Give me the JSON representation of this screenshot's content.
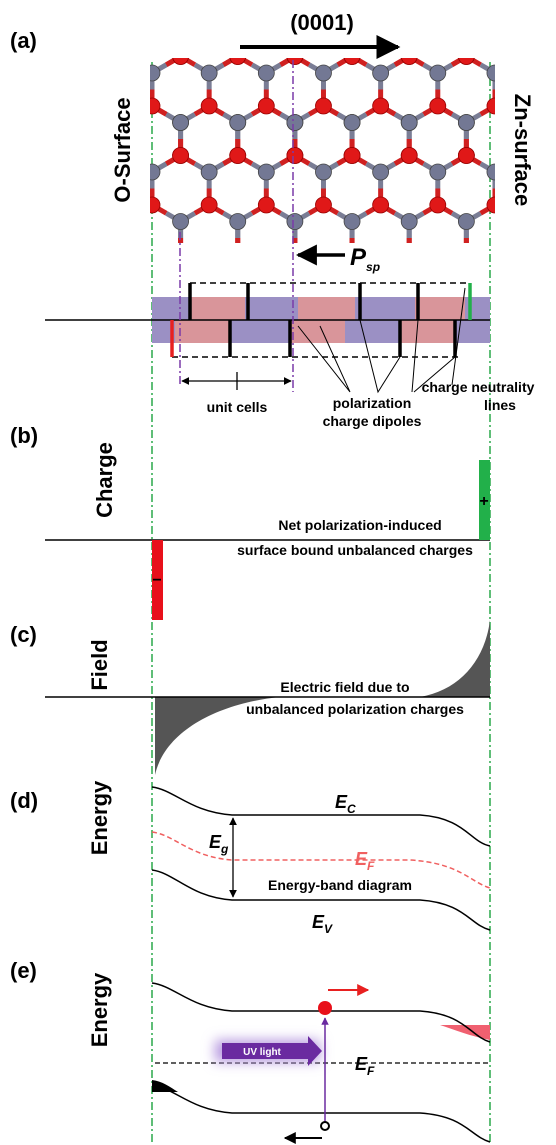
{
  "a": {
    "label": "(a)",
    "direction": "(0001)",
    "left_surface": "O-Surface",
    "right_surface": "Zn-surface",
    "polarization": {
      "main": "P",
      "sub": "sp"
    },
    "unit_cells": "unit cells",
    "dipoles": [
      "polarization",
      "charge dipoles"
    ],
    "neutrality": [
      "charge neutrality",
      "lines"
    ]
  },
  "b": {
    "label": "(b)",
    "axis": "Charge",
    "plus": "+",
    "minus": "−",
    "caption": [
      "Net polarization-induced",
      "surface bound unbalanced charges"
    ]
  },
  "c": {
    "label": "(c)",
    "axis": "Field",
    "caption": [
      "Electric field due to",
      "unbalanced polarization charges"
    ]
  },
  "d": {
    "label": "(d)",
    "axis": "Energy",
    "ec": {
      "main": "E",
      "sub": "C"
    },
    "eg": {
      "main": "E",
      "sub": "g"
    },
    "ef": {
      "main": "E",
      "sub": "F"
    },
    "caption": "Energy-band diagram",
    "ev": {
      "main": "E",
      "sub": "V"
    }
  },
  "e": {
    "label": "(e)",
    "axis": "Energy",
    "uv": "UV light",
    "ef": {
      "main": "E",
      "sub": "F"
    }
  }
}
